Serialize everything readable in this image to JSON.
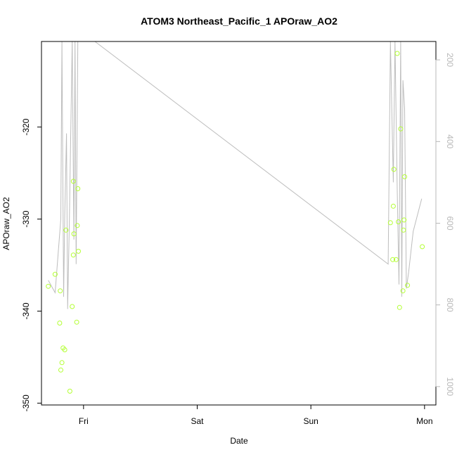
{
  "chart_data": {
    "type": "scatter",
    "title": "ATOM3 Northeast_Pacific_1 APOraw_AO2",
    "xlabel": "Date",
    "ylabel": "APOraw_AO2",
    "x_ticks": [
      "Fri",
      "Sat",
      "Sun",
      "Mon"
    ],
    "x_tick_positions": [
      0,
      1,
      2,
      3
    ],
    "xlim": [
      -0.37,
      3.1
    ],
    "ylim": [
      -350.2,
      -310.7
    ],
    "y_ticks": [
      -350,
      -340,
      -330,
      -320
    ],
    "y_tick_labels": [
      "-350",
      "-340",
      "-330",
      "-320"
    ],
    "y2_ticks": [
      200,
      400,
      600,
      800,
      1000
    ],
    "y2_tick_labels": [
      "200",
      "400",
      "600",
      "800",
      "1000"
    ],
    "y2lim": [
      1045,
      155
    ],
    "grid": false,
    "legend": "none",
    "colors": {
      "points": "#b3ff33",
      "line": "#bdbdbd",
      "axis": "#000000",
      "right_axis": "#b8b8b8"
    },
    "series": [
      {
        "values": [
          {
            "x": -0.31,
            "y": -337.3
          },
          {
            "x": -0.25,
            "y": -336.0
          },
          {
            "x": -0.21,
            "y": -341.3
          },
          {
            "x": -0.205,
            "y": -337.8
          },
          {
            "x": -0.2,
            "y": -346.4
          },
          {
            "x": -0.19,
            "y": -345.6
          },
          {
            "x": -0.18,
            "y": -344.0
          },
          {
            "x": -0.165,
            "y": -344.2
          },
          {
            "x": -0.155,
            "y": -331.2
          },
          {
            "x": -0.12,
            "y": -348.7
          },
          {
            "x": -0.1,
            "y": -339.5
          },
          {
            "x": -0.09,
            "y": -325.9
          },
          {
            "x": -0.09,
            "y": -333.9
          },
          {
            "x": -0.085,
            "y": -331.6
          },
          {
            "x": -0.06,
            "y": -341.2
          },
          {
            "x": -0.055,
            "y": -330.7
          },
          {
            "x": -0.05,
            "y": -326.7
          },
          {
            "x": -0.045,
            "y": -333.5
          },
          {
            "x": 2.7,
            "y": -330.4
          },
          {
            "x": 2.72,
            "y": -334.4
          },
          {
            "x": 2.725,
            "y": -328.6
          },
          {
            "x": 2.73,
            "y": -324.6
          },
          {
            "x": 2.75,
            "y": -334.4
          },
          {
            "x": 2.76,
            "y": -312.0
          },
          {
            "x": 2.77,
            "y": -330.3
          },
          {
            "x": 2.78,
            "y": -339.6
          },
          {
            "x": 2.79,
            "y": -320.2
          },
          {
            "x": 2.81,
            "y": -337.8
          },
          {
            "x": 2.815,
            "y": -331.2
          },
          {
            "x": 2.82,
            "y": -330.1
          },
          {
            "x": 2.825,
            "y": -325.4
          },
          {
            "x": 2.85,
            "y": -337.2
          },
          {
            "x": 2.98,
            "y": -333.0
          }
        ]
      },
      {
        "axis": "right",
        "values": [
          {
            "x": -0.31,
            "y": 740
          },
          {
            "x": -0.25,
            "y": 770
          },
          {
            "x": -0.2,
            "y": 590
          },
          {
            "x": -0.19,
            "y": 100
          },
          {
            "x": -0.175,
            "y": 780
          },
          {
            "x": -0.165,
            "y": 580
          },
          {
            "x": -0.15,
            "y": 380
          },
          {
            "x": -0.14,
            "y": 810
          },
          {
            "x": -0.125,
            "y": 600
          },
          {
            "x": -0.1,
            "y": 100
          },
          {
            "x": -0.085,
            "y": 640
          },
          {
            "x": -0.075,
            "y": 100
          },
          {
            "x": -0.065,
            "y": 700
          },
          {
            "x": -0.05,
            "y": 100
          },
          {
            "x": 0.1,
            "y": 155
          },
          {
            "x": 2.68,
            "y": 700
          },
          {
            "x": 2.7,
            "y": 120
          },
          {
            "x": 2.725,
            "y": 500
          },
          {
            "x": 2.74,
            "y": 100
          },
          {
            "x": 2.76,
            "y": 520
          },
          {
            "x": 2.775,
            "y": 750
          },
          {
            "x": 2.79,
            "y": 100
          },
          {
            "x": 2.8,
            "y": 780
          },
          {
            "x": 2.81,
            "y": 250
          },
          {
            "x": 2.825,
            "y": 320
          },
          {
            "x": 2.84,
            "y": 760
          },
          {
            "x": 2.86,
            "y": 720
          },
          {
            "x": 2.9,
            "y": 620
          },
          {
            "x": 2.975,
            "y": 540
          }
        ]
      }
    ]
  }
}
